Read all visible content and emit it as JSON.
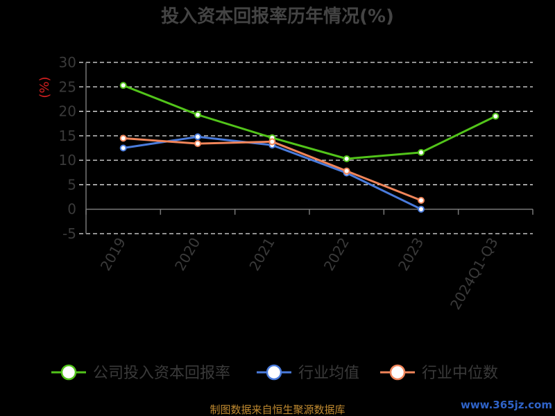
{
  "chart_data": {
    "type": "line",
    "title": "投入资本回报率历年情况(%)",
    "ylabel": "(%)",
    "categories": [
      "2019",
      "2020",
      "2021",
      "2022",
      "2023",
      "2024Q1-Q3"
    ],
    "ylim": [
      -5,
      30
    ],
    "yticks": [
      "30",
      "25",
      "20",
      "15",
      "10",
      "5",
      "0",
      "-5"
    ],
    "ytick_values": [
      30,
      25,
      20,
      15,
      10,
      5,
      0,
      -5
    ],
    "grid": true,
    "legend_position": "bottom",
    "series": [
      {
        "name": "公司投入资本回报率",
        "color": "#52c41a",
        "values": [
          25.3,
          19.3,
          14.6,
          10.3,
          11.6,
          19.0
        ]
      },
      {
        "name": "行业均值",
        "color": "#4a7bdc",
        "values": [
          12.5,
          14.8,
          13.1,
          7.4,
          0.0,
          null
        ]
      },
      {
        "name": "行业中位数",
        "color": "#f0855a",
        "values": [
          14.5,
          13.4,
          13.8,
          7.8,
          1.8,
          null
        ]
      }
    ]
  },
  "source_text": "制图数据来自恒生聚源数据库",
  "watermark_text": "www.365jz.com"
}
